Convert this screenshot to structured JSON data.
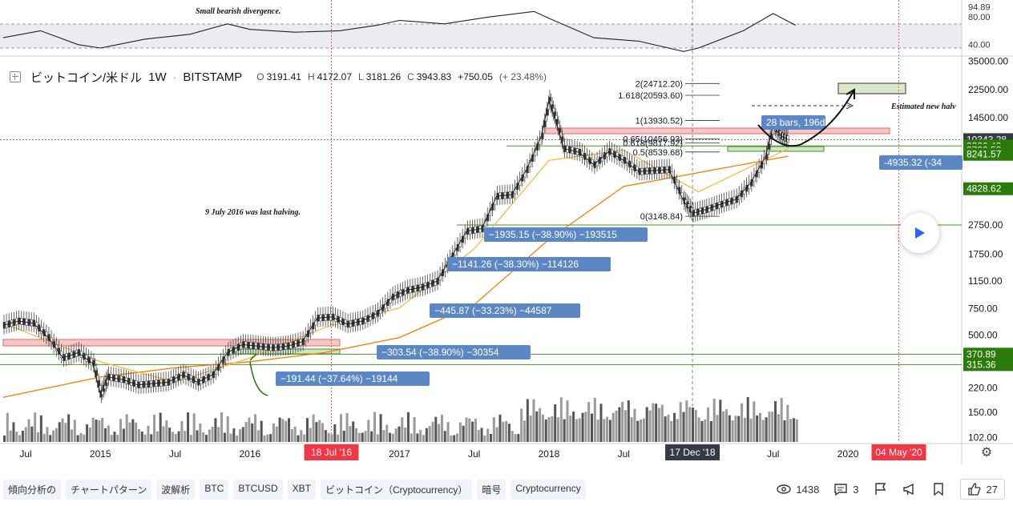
{
  "header": {
    "symbol": "ビットコイン/米ドル",
    "interval": "1W",
    "exchange": "BITSTAMP",
    "open_label": "O",
    "open": "3191.41",
    "high_label": "H",
    "high": "4172.07",
    "low_label": "L",
    "low": "3181.26",
    "close_label": "C",
    "close": "3943.83",
    "change": "+750.05",
    "change_pct": "(+ 23.48%)"
  },
  "colors": {
    "green_label": "#2b7a0b",
    "blue_label": "#5b88c4",
    "red_label": "#f23645",
    "dark_label": "#363a45",
    "resistance_fill": "#f7c6c6",
    "ma_orange": "#f57c00",
    "ma_yellow": "#f5b942"
  },
  "chart_data": {
    "type": "line",
    "title": "ビットコイン/米ドル 1W BITSTAMP",
    "price_scale": "log",
    "ylim": [
      95,
      36000
    ],
    "xlim": [
      2014.35,
      2020.75
    ],
    "x_ticks": [
      {
        "label": "Jul",
        "x": 2014.5
      },
      {
        "label": "2015",
        "x": 2015.0
      },
      {
        "label": "Jul",
        "x": 2015.5
      },
      {
        "label": "2016",
        "x": 2016.0
      },
      {
        "label": "2017",
        "x": 2017.0
      },
      {
        "label": "Jul",
        "x": 2017.5
      },
      {
        "label": "2018",
        "x": 2018.0
      },
      {
        "label": "Jul",
        "x": 2018.5
      },
      {
        "label": "Jul",
        "x": 2019.5
      },
      {
        "label": "2020",
        "x": 2020.0
      }
    ],
    "y_ticks": [
      "35000.00",
      "22500.00",
      "14500.00",
      "9380.42",
      "8780.58",
      "8241.57",
      "4828.62",
      "2750.00",
      "1750.00",
      "1150.00",
      "750.00",
      "500.00",
      "370.89",
      "315.36",
      "220.00",
      "150.00",
      "102.00"
    ],
    "y_tick_values": [
      35000,
      22500,
      14500,
      9380.42,
      8780.58,
      8241.57,
      4828.62,
      2750,
      1750,
      1150,
      750,
      500,
      370.89,
      315.36,
      220,
      150,
      102
    ],
    "price_labels": [
      {
        "text": "10343.28",
        "value": 10343.28,
        "style": "dark"
      },
      {
        "text": "9380.42",
        "value": 9380.42,
        "style": "green"
      },
      {
        "text": "8780.58",
        "value": 8780.58,
        "style": "green"
      },
      {
        "text": "8241.57",
        "value": 8241.57,
        "style": "green"
      },
      {
        "text": "4828.62",
        "value": 4828.62,
        "style": "green"
      },
      {
        "text": "370.89",
        "value": 370.89,
        "style": "green"
      },
      {
        "text": "315.36",
        "value": 315.36,
        "style": "green"
      }
    ],
    "date_labels": [
      {
        "text": "18 Jul '16",
        "x": 2016.545,
        "style": "red"
      },
      {
        "text": "17 Dec '18",
        "x": 2018.96,
        "style": "dark"
      },
      {
        "text": "04 May '20",
        "x": 2020.34,
        "style": "red"
      }
    ],
    "series": [
      {
        "name": "BTC/USD weekly close",
        "x": [
          2014.35,
          2014.45,
          2014.55,
          2014.65,
          2014.75,
          2014.85,
          2014.95,
          2015.0,
          2015.05,
          2015.15,
          2015.25,
          2015.35,
          2015.45,
          2015.55,
          2015.65,
          2015.75,
          2015.85,
          2015.95,
          2016.05,
          2016.15,
          2016.25,
          2016.35,
          2016.45,
          2016.55,
          2016.65,
          2016.75,
          2016.85,
          2016.95,
          2017.05,
          2017.15,
          2017.25,
          2017.35,
          2017.45,
          2017.55,
          2017.65,
          2017.75,
          2017.85,
          2017.95,
          2018.0,
          2018.05,
          2018.1,
          2018.2,
          2018.3,
          2018.4,
          2018.5,
          2018.6,
          2018.7,
          2018.8,
          2018.9,
          2018.96,
          2019.05,
          2019.15,
          2019.25,
          2019.35,
          2019.45,
          2019.5,
          2019.55,
          2019.6
        ],
        "values": [
          580,
          620,
          600,
          480,
          350,
          380,
          320,
          200,
          260,
          250,
          230,
          235,
          240,
          270,
          240,
          270,
          380,
          430,
          420,
          410,
          420,
          450,
          650,
          660,
          590,
          620,
          700,
          900,
          1000,
          1050,
          1150,
          1700,
          2500,
          2600,
          4300,
          4400,
          6500,
          11000,
          19000,
          13500,
          9000,
          8500,
          7000,
          8600,
          7500,
          6300,
          6400,
          6500,
          4000,
          3300,
          3500,
          3800,
          4100,
          5300,
          8000,
          12800,
          11000,
          10343
        ]
      },
      {
        "name": "MA slow",
        "x": [
          2014.35,
          2015.0,
          2015.5,
          2016.0,
          2016.5,
          2017.0,
          2017.5,
          2018.0,
          2018.5,
          2019.0,
          2019.6
        ],
        "values": [
          190,
          260,
          300,
          330,
          380,
          480,
          800,
          2200,
          5000,
          6200,
          8000
        ]
      },
      {
        "name": "MA fast",
        "x": [
          2014.35,
          2015.0,
          2015.5,
          2016.0,
          2016.5,
          2017.0,
          2017.5,
          2018.0,
          2018.5,
          2019.0,
          2019.6
        ],
        "values": [
          600,
          330,
          240,
          350,
          560,
          760,
          1900,
          7500,
          8800,
          4600,
          9000
        ]
      }
    ],
    "rsi_panel": {
      "labels": [
        "94.89",
        "80.00",
        "40.00"
      ],
      "values": [
        94.89,
        80,
        40
      ],
      "ylim": [
        28,
        100
      ],
      "x": [
        2014.35,
        2014.6,
        2014.85,
        2015.0,
        2015.3,
        2015.6,
        2015.85,
        2016.0,
        2016.3,
        2016.6,
        2016.85,
        2017.0,
        2017.3,
        2017.6,
        2017.9,
        2018.0,
        2018.3,
        2018.6,
        2018.9,
        2019.0,
        2019.3,
        2019.5,
        2019.65
      ],
      "rsi": [
        50,
        60,
        40,
        35,
        48,
        55,
        70,
        62,
        58,
        60,
        68,
        75,
        70,
        80,
        88,
        78,
        50,
        45,
        30,
        35,
        60,
        85,
        68
      ]
    },
    "annotations": [
      {
        "text": "Small bearish divergence.",
        "type": "note"
      },
      {
        "text": "9 July 2016 was last halving.",
        "type": "note"
      },
      {
        "text": "Estimated new halv",
        "type": "note"
      },
      {
        "text": "28 bars, 196d",
        "type": "label"
      },
      {
        "text": "-4935.32 (-34",
        "type": "label"
      },
      {
        "text": "−1935.15 (−38.90%) −193515",
        "type": "label"
      },
      {
        "text": "−1141.26 (−38.30%) −114126",
        "type": "label"
      },
      {
        "text": "−445.87 (−33.23%) −44587",
        "type": "label"
      },
      {
        "text": "−303.54 (−38.90%) −30354",
        "type": "label"
      },
      {
        "text": "−191.44 (−37.64%) −19144",
        "type": "label"
      }
    ],
    "fib_levels": [
      {
        "text": "2(24712.20)",
        "value": 24712.2
      },
      {
        "text": "1.618(20593.60)",
        "value": 20593.6
      },
      {
        "text": "1(13930.52)",
        "value": 13930.52
      },
      {
        "text": "0.65(10456.93)",
        "value": 10456.93
      },
      {
        "text": "0.618(9817.92)",
        "value": 9817.92
      },
      {
        "text": "0.5(8539.68)",
        "value": 8539.68
      },
      {
        "text": "0(3148.84)",
        "value": 3148.84
      }
    ]
  },
  "tags": [
    "傾向分析の",
    "チャートパターン",
    "波解析",
    "BTC",
    "BTCUSD",
    "XBT",
    "ビットコイン（Cryptocurrency）",
    "暗号",
    "Cryptocurrency"
  ],
  "stats": {
    "views": "1438",
    "comments": "3",
    "likes": "27"
  }
}
